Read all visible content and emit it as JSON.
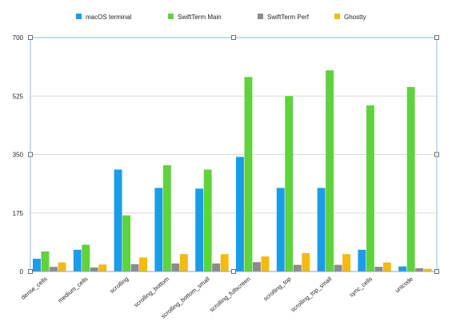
{
  "chart_data": {
    "type": "bar",
    "categories": [
      "dense_cells",
      "medium_cells",
      "scrolling",
      "scrolling_bottom",
      "scrolling_bottom_small",
      "scrolling_fullscreen",
      "scrolling_top",
      "scrolling_top_small",
      "sync_cells",
      "unicode"
    ],
    "series": [
      {
        "name": "macOS terminal",
        "color": "#1a9de8",
        "values": [
          38,
          65,
          305,
          250,
          248,
          343,
          250,
          250,
          65,
          15
        ]
      },
      {
        "name": "SwiftTerm Main",
        "color": "#5fd33c",
        "values": [
          60,
          80,
          168,
          318,
          305,
          582,
          525,
          602,
          497,
          552
        ]
      },
      {
        "name": "SwiftTerm Perf",
        "color": "#8c8c8c",
        "values": [
          14,
          12,
          22,
          24,
          24,
          28,
          20,
          20,
          14,
          10
        ]
      },
      {
        "name": "Ghostty",
        "color": "#f5b90f",
        "values": [
          27,
          21,
          42,
          52,
          52,
          45,
          55,
          52,
          27,
          8
        ]
      }
    ],
    "ylim": [
      0,
      700
    ],
    "yticks": [
      0,
      175,
      350,
      525,
      700
    ],
    "grid": true,
    "legend_position": "top"
  }
}
